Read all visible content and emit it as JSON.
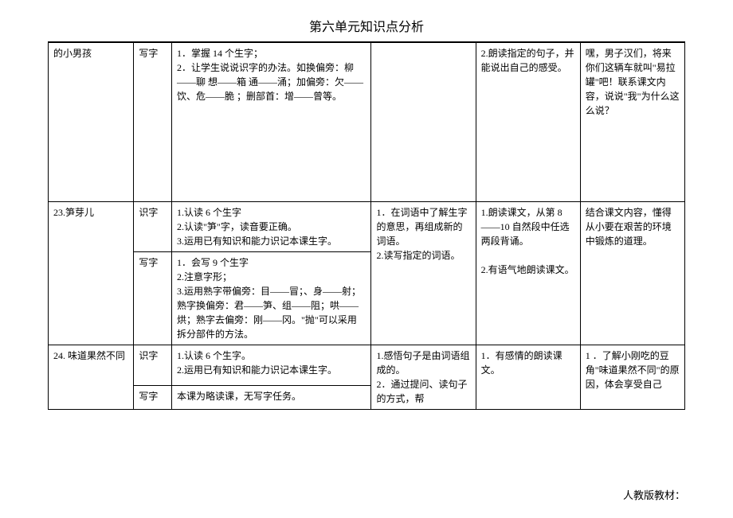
{
  "title": "第六单元知识点分析",
  "rows": [
    {
      "lesson": "的小男孩",
      "type": "写字",
      "c1": "1．掌握 14 个生字；\n2．让学生说说识字的办法。如换偏旁：柳——聊 想——箱 通——涌；加偏旁：欠——饮、危——脆 ；删部首：增——曾等。",
      "c2": "",
      "c3": "2.朗读指定的句子，并能说出自己的感受。",
      "c4": "嘿，男子汉们，将来你们这辆车就叫\"易拉罐\"吧！联系课文内容，说说\"我\"为什么这么说？"
    },
    {
      "lesson": "23.笋芽儿",
      "type1": "识字",
      "c1_1": "1.认读 6 个生字\n2.认读\"笋\"字，读音要正确。\n3.运用已有知识和能力识记本课生字。",
      "type2": "写字",
      "c1_2": "1．会写 9 个生字\n2.注意字形；\n3.运用熟字带偏旁：目——冒；、身——射；熟字换偏旁：君——笋、组——阻；哄——烘；熟字去偏旁：刚——冈。\"抛\"可以采用拆分部件的方法。",
      "c2": "1．在词语中了解生字的意思，再组成新的词语。\n2.读写指定的词语。",
      "c3": "1.朗读课文，从第 8——10 自然段中任选两段背诵。\n\n2.有语气地朗读课文。",
      "c4": "结合课文内容，懂得从小要在艰苦的环境中锻炼的道理。"
    },
    {
      "lesson": "24. 味道果然不同",
      "type1": "识字",
      "c1_1": "1.认读 6 个生字。\n2.运用已有知识和能力识记本课生字。",
      "type2": "写字",
      "c1_2": "本课为略读课，无写字任务。",
      "c2": "1.感悟句子是由词语组成的。\n2．通过提问、读句子的方式，帮",
      "c3": "1．有感情的朗读课文。",
      "c4": "1 ．了解小刚吃的豆角\"味道果然不同\"的原因，体会享受自己"
    }
  ],
  "footer": "人教版教材："
}
